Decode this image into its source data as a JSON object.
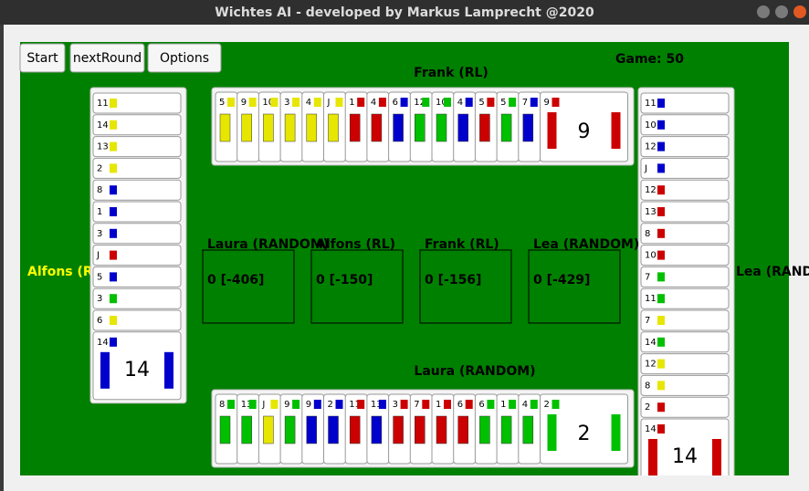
{
  "window": {
    "title": "Wichtes AI - developed by Markus Lamprecht @2020"
  },
  "toolbar": {
    "buttons": [
      "Start",
      "nextRound",
      "Options"
    ],
    "game": "Game: 50"
  },
  "players": {
    "top": {
      "name": "Frank (RL)",
      "cards": [
        {
          "rank": "5",
          "color": "#e6e600"
        },
        {
          "rank": "9",
          "color": "#e6e600"
        },
        {
          "rank": "10",
          "color": "#e6e600"
        },
        {
          "rank": "3",
          "color": "#e6e600"
        },
        {
          "rank": "4",
          "color": "#e6e600"
        },
        {
          "rank": "J",
          "color": "#e6e600"
        },
        {
          "rank": "1",
          "color": "#cc0000"
        },
        {
          "rank": "4",
          "color": "#cc0000"
        },
        {
          "rank": "6",
          "color": "#0000cc"
        },
        {
          "rank": "12",
          "color": "#00c000"
        },
        {
          "rank": "10",
          "color": "#00c000"
        },
        {
          "rank": "4",
          "color": "#0000cc"
        },
        {
          "rank": "5",
          "color": "#cc0000"
        },
        {
          "rank": "5",
          "color": "#00c000"
        },
        {
          "rank": "7",
          "color": "#0000cc"
        },
        {
          "rank": "9",
          "color": "#cc0000"
        }
      ]
    },
    "left": {
      "name": "Alfons (RL)",
      "cards": [
        {
          "rank": "11",
          "color": "#e6e600"
        },
        {
          "rank": "14",
          "color": "#e6e600"
        },
        {
          "rank": "13",
          "color": "#e6e600"
        },
        {
          "rank": "2",
          "color": "#e6e600"
        },
        {
          "rank": "8",
          "color": "#0000cc"
        },
        {
          "rank": "1",
          "color": "#0000cc"
        },
        {
          "rank": "3",
          "color": "#0000cc"
        },
        {
          "rank": "J",
          "color": "#cc0000"
        },
        {
          "rank": "5",
          "color": "#0000cc"
        },
        {
          "rank": "3",
          "color": "#00c000"
        },
        {
          "rank": "6",
          "color": "#e6e600"
        },
        {
          "rank": "14",
          "color": "#0000cc"
        }
      ]
    },
    "right": {
      "name": "Lea (RANDOM)",
      "cards": [
        {
          "rank": "11",
          "color": "#0000cc"
        },
        {
          "rank": "10",
          "color": "#0000cc"
        },
        {
          "rank": "12",
          "color": "#0000cc"
        },
        {
          "rank": "J",
          "color": "#0000cc"
        },
        {
          "rank": "12",
          "color": "#cc0000"
        },
        {
          "rank": "13",
          "color": "#cc0000"
        },
        {
          "rank": "8",
          "color": "#cc0000"
        },
        {
          "rank": "10",
          "color": "#cc0000"
        },
        {
          "rank": "7",
          "color": "#00c000"
        },
        {
          "rank": "11",
          "color": "#00c000"
        },
        {
          "rank": "7",
          "color": "#e6e600"
        },
        {
          "rank": "14",
          "color": "#00c000"
        },
        {
          "rank": "12",
          "color": "#e6e600"
        },
        {
          "rank": "8",
          "color": "#e6e600"
        },
        {
          "rank": "2",
          "color": "#cc0000"
        },
        {
          "rank": "14",
          "color": "#cc0000"
        }
      ]
    },
    "bottom": {
      "name": "Laura (RANDOM)",
      "cards": [
        {
          "rank": "8",
          "color": "#00c000"
        },
        {
          "rank": "13",
          "color": "#00c000"
        },
        {
          "rank": "J",
          "color": "#e6e600"
        },
        {
          "rank": "9",
          "color": "#00c000"
        },
        {
          "rank": "9",
          "color": "#0000cc"
        },
        {
          "rank": "2",
          "color": "#0000cc"
        },
        {
          "rank": "11",
          "color": "#cc0000"
        },
        {
          "rank": "13",
          "color": "#0000cc"
        },
        {
          "rank": "3",
          "color": "#cc0000"
        },
        {
          "rank": "7",
          "color": "#cc0000"
        },
        {
          "rank": "1",
          "color": "#cc0000"
        },
        {
          "rank": "6",
          "color": "#cc0000"
        },
        {
          "rank": "6",
          "color": "#00c000"
        },
        {
          "rank": "1",
          "color": "#00c000"
        },
        {
          "rank": "4",
          "color": "#00c000"
        },
        {
          "rank": "2",
          "color": "#00c000"
        }
      ]
    }
  },
  "scores": [
    {
      "name": "Laura (RANDOM)",
      "value": "0 [-406]"
    },
    {
      "name": "Alfons (RL)",
      "value": "0 [-150]"
    },
    {
      "name": "Frank (RL)",
      "value": "0 [-156]"
    },
    {
      "name": "Lea (RANDOM)",
      "value": "0 [-429]"
    }
  ]
}
